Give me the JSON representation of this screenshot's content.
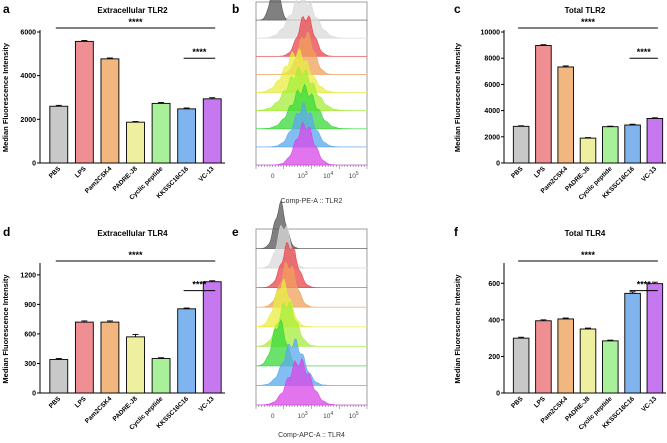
{
  "panels": [
    {
      "letter": "a",
      "type": "bar",
      "title": "Extracellular TLR2",
      "ylabel": "Median Fluorescence Intensity",
      "categories": [
        "PBS",
        "LPS",
        "Pam2CSK4",
        "PADRE-J8",
        "Cyclic peptide",
        "KKSSC16C16",
        "VC-13"
      ],
      "values": [
        2600,
        5570,
        4770,
        1870,
        2730,
        2480,
        2940
      ],
      "errors": [
        40,
        40,
        40,
        30,
        40,
        40,
        50
      ],
      "colors": [
        "#c8c8c8",
        "#ef8f93",
        "#f1b77e",
        "#eef0a0",
        "#a8f09a",
        "#7fb4ef",
        "#c678ee"
      ],
      "ylim": [
        0,
        6000
      ],
      "yticks": [
        0,
        2000,
        4000,
        6000
      ],
      "ytick_labels": [
        "0",
        "2000",
        "4000",
        "6000"
      ],
      "sig_all": "****",
      "sig_pair": "****",
      "sig_pair_range": [
        5,
        6
      ]
    },
    {
      "letter": "c",
      "type": "bar",
      "title": "Total TLR2",
      "ylabel": "Median Fluorescence Intensity",
      "categories": [
        "PBS",
        "LPS",
        "Pam2CSK4",
        "PADRE-J8",
        "Cyclic peptide",
        "KKSSC16C16",
        "VC-13"
      ],
      "values": [
        2800,
        8970,
        7330,
        1900,
        2770,
        2900,
        3400
      ],
      "errors": [
        40,
        60,
        80,
        40,
        40,
        60,
        50
      ],
      "colors": [
        "#c8c8c8",
        "#ef8f93",
        "#f1b77e",
        "#eef0a0",
        "#a8f09a",
        "#7fb4ef",
        "#c678ee"
      ],
      "ylim": [
        0,
        10000
      ],
      "yticks": [
        0,
        2000,
        4000,
        6000,
        8000,
        10000
      ],
      "ytick_labels": [
        "0",
        "2000",
        "4000",
        "6000",
        "8000",
        "10000"
      ],
      "sig_all": "****",
      "sig_pair": "****",
      "sig_pair_range": [
        5,
        6
      ]
    },
    {
      "letter": "d",
      "type": "bar",
      "title": "Extracellular TLR4",
      "ylabel": "Median Fluorescence Intensity",
      "categories": [
        "PBS",
        "LPS",
        "Pam2CSK4",
        "PADRE-J8",
        "Cyclic peptide",
        "KKSSC16C16",
        "VC-13"
      ],
      "values": [
        340,
        720,
        720,
        570,
        350,
        855,
        1130
      ],
      "errors": [
        10,
        12,
        12,
        25,
        8,
        8,
        10
      ],
      "colors": [
        "#c8c8c8",
        "#ef8f93",
        "#f1b77e",
        "#eef0a0",
        "#a8f09a",
        "#7fb4ef",
        "#c678ee"
      ],
      "ylim": [
        0,
        1300
      ],
      "yticks": [
        0,
        300,
        600,
        900,
        1200
      ],
      "ytick_labels": [
        "0",
        "300",
        "600",
        "900",
        "1200"
      ],
      "sig_all": "****",
      "sig_pair": "****",
      "sig_pair_range": [
        5,
        6
      ]
    },
    {
      "letter": "f",
      "type": "bar",
      "title": "Total TLR4",
      "ylabel": "Median Fluorescence Intensity",
      "categories": [
        "PBS",
        "LPS",
        "Pam2CSK4",
        "PADRE-J8",
        "Cyclic peptide",
        "KKSSC16C16",
        "VC-13"
      ],
      "values": [
        300,
        395,
        405,
        350,
        285,
        545,
        598
      ],
      "errors": [
        5,
        5,
        5,
        5,
        4,
        8,
        8
      ],
      "colors": [
        "#c8c8c8",
        "#ef8f93",
        "#f1b77e",
        "#eef0a0",
        "#a8f09a",
        "#7fb4ef",
        "#c678ee"
      ],
      "ylim": [
        0,
        700
      ],
      "yticks": [
        0,
        200,
        400,
        600
      ],
      "ytick_labels": [
        "0",
        "200",
        "400",
        "600"
      ],
      "sig_all": "****",
      "sig_pair": "****",
      "sig_pair_range": [
        5,
        6
      ]
    }
  ],
  "histograms": [
    {
      "letter": "b",
      "xlabel": "Comp-PE-A :: TLR2",
      "tick_labels": [
        "0",
        "10",
        "10",
        "10"
      ],
      "tick_exponents": [
        "",
        "3",
        "4",
        "5"
      ],
      "colors": [
        "#555555",
        "#d9d9d9",
        "#e8454a",
        "#f0a05a",
        "#e8ee40",
        "#a6ee3a",
        "#3ad83a",
        "#5aa8ee",
        "#d845e8"
      ],
      "peaks": [
        0.17,
        0.42,
        0.45,
        0.45,
        0.37,
        0.4,
        0.43,
        0.43,
        0.44
      ],
      "widths": [
        0.04,
        0.11,
        0.07,
        0.07,
        0.11,
        0.12,
        0.11,
        0.09,
        0.08
      ]
    },
    {
      "letter": "e",
      "xlabel": "Comp-APC-A :: TLR4",
      "tick_labels": [
        "0",
        "10",
        "10",
        "10"
      ],
      "tick_exponents": [
        "",
        "3",
        "4",
        "5"
      ],
      "colors": [
        "#555555",
        "#d9d9d9",
        "#e8454a",
        "#f0a05a",
        "#e8ee40",
        "#a6ee3a",
        "#3ad83a",
        "#5aa8ee",
        "#d845e8"
      ],
      "peaks": [
        0.22,
        0.25,
        0.3,
        0.29,
        0.24,
        0.28,
        0.21,
        0.34,
        0.39
      ],
      "widths": [
        0.05,
        0.06,
        0.07,
        0.07,
        0.07,
        0.08,
        0.06,
        0.09,
        0.1
      ]
    }
  ],
  "chart_data": [
    {
      "type": "bar",
      "title": "Extracellular TLR2",
      "categories": [
        "PBS",
        "LPS",
        "Pam2CSK4",
        "PADRE-J8",
        "Cyclic peptide",
        "KKSSC16C16",
        "VC-13"
      ],
      "values": [
        2600,
        5570,
        4770,
        1870,
        2730,
        2480,
        2940
      ],
      "xlabel": "",
      "ylabel": "Median Fluorescence Intensity",
      "ylim": [
        0,
        6000
      ]
    },
    {
      "type": "area",
      "title": "",
      "xlabel": "Comp-PE-A :: TLR2",
      "series": [
        "PBS",
        "LPS",
        "Pam2CSK4",
        "PADRE-J8",
        "Cyclic peptide",
        "KKSSC16C16",
        "VC-13"
      ]
    },
    {
      "type": "bar",
      "title": "Total TLR2",
      "categories": [
        "PBS",
        "LPS",
        "Pam2CSK4",
        "PADRE-J8",
        "Cyclic peptide",
        "KKSSC16C16",
        "VC-13"
      ],
      "values": [
        2800,
        8970,
        7330,
        1900,
        2770,
        2900,
        3400
      ],
      "xlabel": "",
      "ylabel": "Median Fluorescence Intensity",
      "ylim": [
        0,
        10000
      ]
    },
    {
      "type": "bar",
      "title": "Extracellular TLR4",
      "categories": [
        "PBS",
        "LPS",
        "Pam2CSK4",
        "PADRE-J8",
        "Cyclic peptide",
        "KKSSC16C16",
        "VC-13"
      ],
      "values": [
        340,
        720,
        720,
        570,
        350,
        855,
        1130
      ],
      "xlabel": "",
      "ylabel": "Median Fluorescence Intensity",
      "ylim": [
        0,
        1300
      ]
    },
    {
      "type": "area",
      "title": "",
      "xlabel": "Comp-APC-A :: TLR4",
      "series": [
        "PBS",
        "LPS",
        "Pam2CSK4",
        "PADRE-J8",
        "Cyclic peptide",
        "KKSSC16C16",
        "VC-13"
      ]
    },
    {
      "type": "bar",
      "title": "Total TLR4",
      "categories": [
        "PBS",
        "LPS",
        "Pam2CSK4",
        "PADRE-J8",
        "Cyclic peptide",
        "KKSSC16C16",
        "VC-13"
      ],
      "values": [
        300,
        395,
        405,
        350,
        285,
        545,
        598
      ],
      "xlabel": "",
      "ylabel": "Median Fluorescence Intensity",
      "ylim": [
        0,
        700
      ]
    }
  ]
}
